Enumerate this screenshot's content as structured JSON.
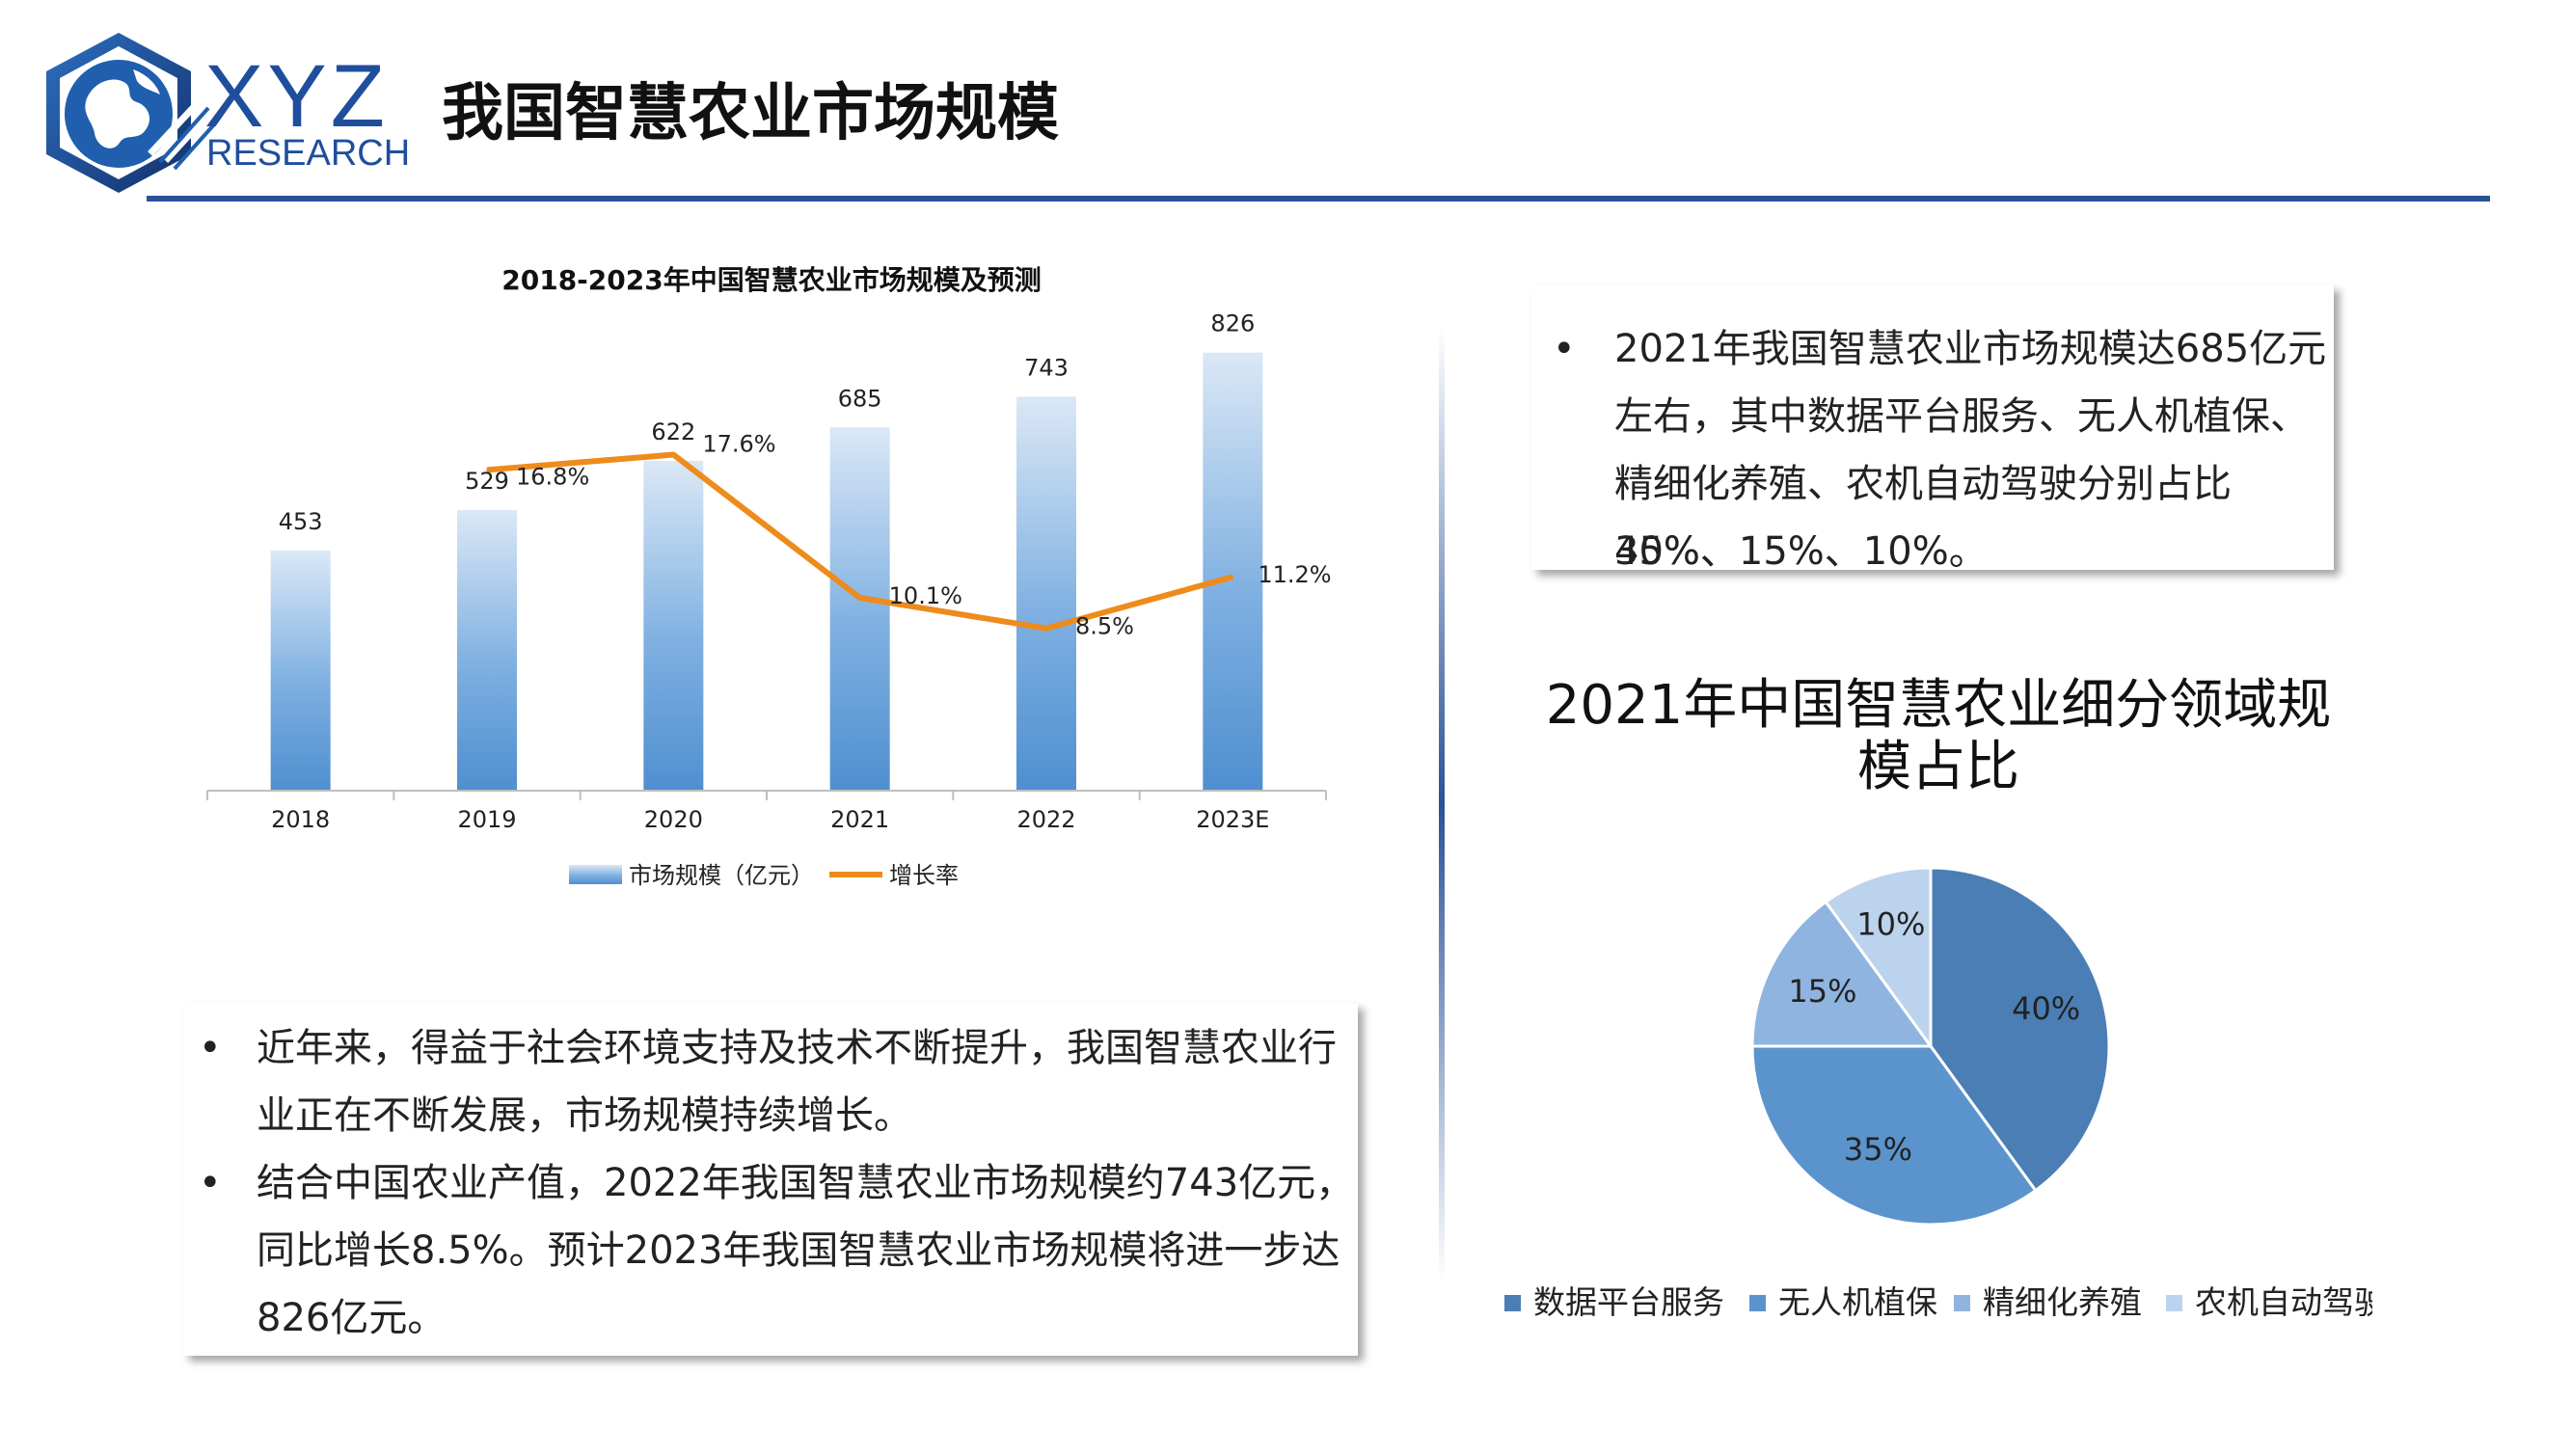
{
  "header": {
    "brand_name": "XYZ",
    "brand_sub": "RESEARCH",
    "title": "我国智慧农业市场规模",
    "logo_icon": "globe-hexagon-icon",
    "brand_color": "#1f4e9c"
  },
  "chart_data": [
    {
      "type": "bar",
      "title": "2018-2023年中国智慧农业市场规模及预测",
      "categories": [
        "2018",
        "2019",
        "2020",
        "2021",
        "2022",
        "2023E"
      ],
      "series": [
        {
          "name": "市场规模（亿元）",
          "type": "bar",
          "values": [
            453,
            529,
            622,
            685,
            743,
            826
          ],
          "labels": [
            "453",
            "529",
            "622",
            "685",
            "743",
            "826"
          ],
          "color": "#5b9bd5"
        },
        {
          "name": "增长率",
          "type": "line",
          "values": [
            null,
            16.8,
            17.6,
            10.1,
            8.5,
            11.2
          ],
          "labels": [
            "",
            "16.8%",
            "17.6%",
            "10.1%",
            "8.5%",
            "11.2%"
          ],
          "color": "#ed8b1c"
        }
      ],
      "ylim_bar": [
        0,
        900
      ],
      "ylim_line": [
        0,
        25
      ],
      "legend": "bottom",
      "grid": false
    },
    {
      "type": "pie",
      "title": "2021年中国智慧农业细分领域规模占比",
      "categories": [
        "数据平台服务",
        "无人机植保",
        "精细化养殖",
        "农机自动驾驶"
      ],
      "values": [
        40,
        35,
        15,
        10
      ],
      "labels": [
        "40%",
        "35%",
        "15%",
        "10%"
      ],
      "colors": [
        "#4a7eb5",
        "#5b94cc",
        "#8fb4df",
        "#bcd3ee"
      ],
      "legend": "bottom"
    }
  ],
  "left_text": {
    "bullet_symbol": "•",
    "lines": [
      "近年来，得益于社会环境支持及技术不断提升，我国智慧农业行",
      "业正在不断发展，市场规模持续增长。",
      "结合中国农业产值，2022年我国智慧农业市场规模约743亿元，",
      "同比增长8.5%。预计2023年我国智慧农业市场规模将进一步达",
      "826亿元。"
    ]
  },
  "right_text": {
    "bullet_symbol": "•",
    "lines": [
      "2021年我国智慧农业市场规模达685亿元",
      "左右，其中数据平台服务、无人机植保、",
      "精细化养殖、农机自动驾驶分别占比40%、",
      "35%、15%、10%。"
    ]
  }
}
